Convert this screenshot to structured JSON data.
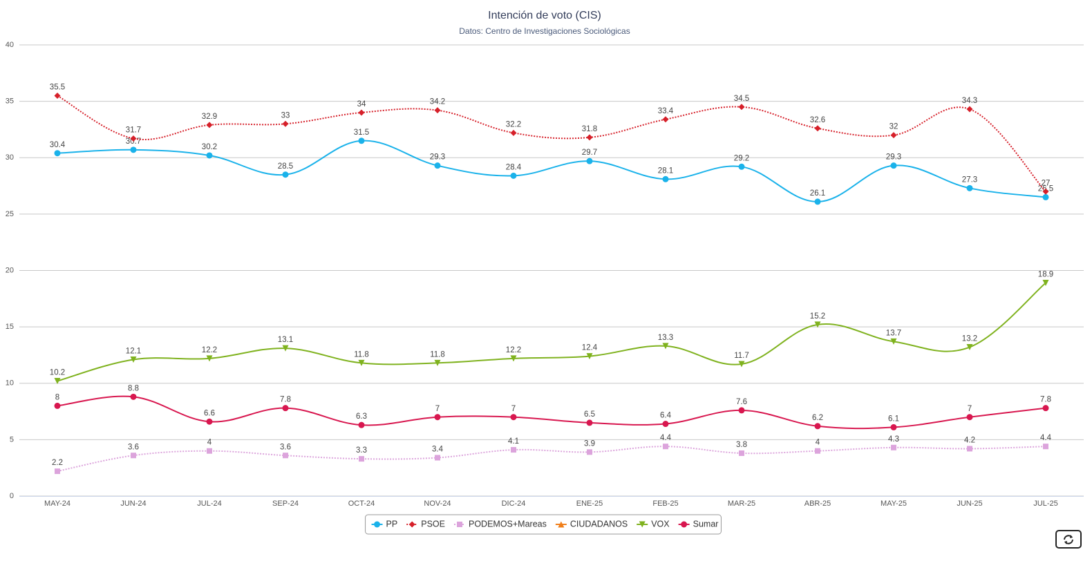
{
  "chart_data": {
    "type": "line",
    "title": "Intención de voto (CIS)",
    "subtitle": "Datos: Centro de Investigaciones Sociológicas",
    "categories": [
      "MAY-24",
      "JUN-24",
      "JUL-24",
      "SEP-24",
      "OCT-24",
      "NOV-24",
      "DIC-24",
      "ENE-25",
      "FEB-25",
      "MAR-25",
      "ABR-25",
      "MAY-25",
      "JUN-25",
      "JUL-25"
    ],
    "ylim": [
      0,
      40
    ],
    "yticks": [
      0,
      5,
      10,
      15,
      20,
      25,
      30,
      35,
      40
    ],
    "grid": true,
    "legend": "bottom",
    "series": [
      {
        "name": "PP",
        "color": "#1ab2ea",
        "line_style": "solid",
        "marker": "circle",
        "values": [
          30.4,
          30.7,
          30.2,
          28.5,
          31.5,
          29.3,
          28.4,
          29.7,
          28.1,
          29.2,
          26.1,
          29.3,
          27.3,
          26.5
        ]
      },
      {
        "name": "PSOE",
        "color": "#d6202a",
        "line_style": "dotted",
        "marker": "diamond",
        "values": [
          35.5,
          31.7,
          32.9,
          33,
          34,
          34.2,
          32.2,
          31.8,
          33.4,
          34.5,
          32.6,
          32,
          34.3,
          27
        ]
      },
      {
        "name": "PODEMOS+Mareas",
        "color": "#dca4dc",
        "line_style": "dotted",
        "marker": "square",
        "values": [
          2.2,
          3.6,
          4,
          3.6,
          3.3,
          3.4,
          4.1,
          3.9,
          4.4,
          3.8,
          4,
          4.3,
          4.2,
          4.4
        ]
      },
      {
        "name": "CIUDADANOS",
        "color": "#f07f1a",
        "line_style": "solid",
        "marker": "triangle",
        "values": [
          null,
          null,
          null,
          null,
          null,
          null,
          null,
          null,
          null,
          null,
          null,
          null,
          null,
          null
        ]
      },
      {
        "name": "VOX",
        "color": "#7fb21e",
        "line_style": "solid",
        "marker": "triangle-down",
        "values": [
          10.2,
          12.1,
          12.2,
          13.1,
          11.8,
          11.8,
          12.2,
          12.4,
          13.3,
          11.7,
          15.2,
          13.7,
          13.2,
          18.9
        ]
      },
      {
        "name": "Sumar",
        "color": "#d8174f",
        "line_style": "solid",
        "marker": "circle",
        "values": [
          8,
          8.8,
          6.6,
          7.8,
          6.3,
          7,
          7,
          6.5,
          6.4,
          7.6,
          6.2,
          6.1,
          7,
          7.8
        ]
      }
    ]
  }
}
